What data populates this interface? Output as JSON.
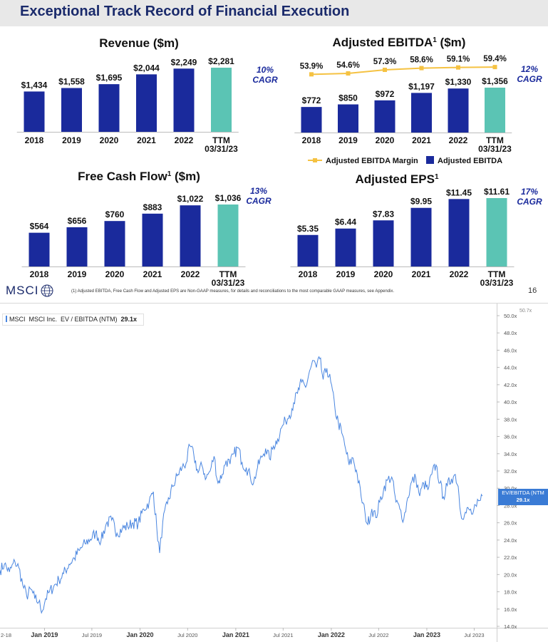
{
  "slide": {
    "title": "Exceptional Track Record of Financial Execution",
    "footnote": "(1) Adjusted EBITDA, Free Cash Flow and Adjusted EPS are Non-GAAP measures, for details and reconciliations to the most comparable GAAP measures, see Appendix.",
    "logo": "MSCI",
    "page_number": "16",
    "colors": {
      "title": "#1a2a6b",
      "bar": "#1a2a9c",
      "ttm_bar": "#5bc4b4",
      "margin_line": "#f5c242",
      "cagr": "#1a2a9c"
    }
  },
  "chart_data": [
    {
      "type": "bar",
      "title": "Revenue ($m)",
      "categories": [
        "2018",
        "2019",
        "2020",
        "2021",
        "2022",
        "TTM 03/31/23"
      ],
      "values": [
        1434,
        1558,
        1695,
        2044,
        2249,
        2281
      ],
      "labels": [
        "$1,434",
        "$1,558",
        "$1,695",
        "$2,044",
        "$2,249",
        "$2,281"
      ],
      "cagr": [
        "10%",
        "CAGR"
      ]
    },
    {
      "type": "bar",
      "title": "Adjusted EBITDA",
      "title_sup": "1",
      "title_suffix": " ($m)",
      "categories": [
        "2018",
        "2019",
        "2020",
        "2021",
        "2022",
        "TTM 03/31/23"
      ],
      "values": [
        772,
        850,
        972,
        1197,
        1330,
        1356
      ],
      "labels": [
        "$772",
        "$850",
        "$972",
        "$1,197",
        "$1,330",
        "$1,356"
      ],
      "margin": {
        "name": "Adjusted EBITDA Margin",
        "values": [
          53.9,
          54.6,
          57.3,
          58.6,
          59.1,
          59.4
        ],
        "labels": [
          "53.9%",
          "54.6%",
          "57.3%",
          "58.6%",
          "59.1%",
          "59.4%"
        ]
      },
      "legend": [
        "Adjusted EBITDA Margin",
        "Adjusted EBITDA"
      ],
      "cagr": [
        "12%",
        "CAGR"
      ]
    },
    {
      "type": "bar",
      "title": "Free Cash Flow",
      "title_sup": "1",
      "title_suffix": " ($m)",
      "categories": [
        "2018",
        "2019",
        "2020",
        "2021",
        "2022",
        "TTM 03/31/23"
      ],
      "values": [
        564,
        656,
        760,
        883,
        1022,
        1036
      ],
      "labels": [
        "$564",
        "$656",
        "$760",
        "$883",
        "$1,022",
        "$1,036"
      ],
      "cagr": [
        "13%",
        "CAGR"
      ]
    },
    {
      "type": "bar",
      "title": "Adjusted EPS",
      "title_sup": "1",
      "title_suffix": "",
      "categories": [
        "2018",
        "2019",
        "2020",
        "2021",
        "2022",
        "TTM 03/31/23"
      ],
      "values": [
        5.35,
        6.44,
        7.83,
        9.95,
        11.45,
        11.61
      ],
      "labels": [
        "$5.35",
        "$6.44",
        "$7.83",
        "$9.95",
        "$11.45",
        "$11.61"
      ],
      "cagr": [
        "17%",
        "CAGR"
      ]
    },
    {
      "type": "line",
      "legend": {
        "ticker": "MSCI",
        "company": "MSCI Inc.",
        "metric": "EV / EBITDA (NTM)",
        "last": "29.1x"
      },
      "last_tag": [
        "EV/EBITDA (NTM",
        "29.1x"
      ],
      "top_clipped_label": "50.7x",
      "y_ticks": [
        "14.0x",
        "16.0x",
        "18.0x",
        "20.0x",
        "22.0x",
        "24.0x",
        "26.0x",
        "28.0x",
        "30.0x",
        "32.0x",
        "34.0x",
        "36.0x",
        "38.0x",
        "40.0x",
        "42.0x",
        "44.0x",
        "46.0x",
        "48.0x",
        "50.0x"
      ],
      "ylim": [
        14,
        50
      ],
      "x_ticks": [
        {
          "label": "Jan 2019",
          "date": "2019-01-01",
          "bold": true
        },
        {
          "label": "Jul 2019",
          "date": "2019-07-01",
          "bold": false
        },
        {
          "label": "Jan 2020",
          "date": "2020-01-01",
          "bold": true
        },
        {
          "label": "Jul 2020",
          "date": "2020-07-01",
          "bold": false
        },
        {
          "label": "Jan 2021",
          "date": "2021-01-01",
          "bold": true
        },
        {
          "label": "Jul 2021",
          "date": "2021-07-01",
          "bold": false
        },
        {
          "label": "Jan 2022",
          "date": "2022-01-01",
          "bold": true
        },
        {
          "label": "Jul 2022",
          "date": "2022-07-01",
          "bold": false
        },
        {
          "label": "Jan 2023",
          "date": "2023-01-01",
          "bold": true
        },
        {
          "label": "Jul 2023",
          "date": "2023-07-01",
          "bold": false
        }
      ],
      "left_clipped_label": "2-18",
      "xlim": [
        "2018-07-15",
        "2023-09-25"
      ],
      "series": [
        {
          "color": "#4a86e0",
          "points": [
            [
              "2018-07-15",
              20.5
            ],
            [
              "2018-08-01",
              21.2
            ],
            [
              "2018-08-20",
              20.3
            ],
            [
              "2018-09-10",
              21.5
            ],
            [
              "2018-09-25",
              20.8
            ],
            [
              "2018-10-10",
              18.8
            ],
            [
              "2018-10-25",
              17.5
            ],
            [
              "2018-11-10",
              18.3
            ],
            [
              "2018-11-25",
              17.2
            ],
            [
              "2018-12-10",
              16.8
            ],
            [
              "2018-12-24",
              15.8
            ],
            [
              "2019-01-05",
              17.2
            ],
            [
              "2019-01-20",
              18.0
            ],
            [
              "2019-02-05",
              18.6
            ],
            [
              "2019-02-25",
              19.4
            ],
            [
              "2019-03-15",
              20.1
            ],
            [
              "2019-04-05",
              21.2
            ],
            [
              "2019-04-25",
              21.9
            ],
            [
              "2019-05-15",
              22.8
            ],
            [
              "2019-06-05",
              23.6
            ],
            [
              "2019-06-25",
              24.1
            ],
            [
              "2019-07-15",
              24.8
            ],
            [
              "2019-08-05",
              23.9
            ],
            [
              "2019-08-25",
              25.9
            ],
            [
              "2019-09-15",
              26.3
            ],
            [
              "2019-10-05",
              24.8
            ],
            [
              "2019-10-25",
              25.3
            ],
            [
              "2019-11-15",
              25.6
            ],
            [
              "2019-12-05",
              26.0
            ],
            [
              "2019-12-25",
              25.9
            ],
            [
              "2020-01-15",
              27.6
            ],
            [
              "2020-02-05",
              28.4
            ],
            [
              "2020-02-21",
              29.6
            ],
            [
              "2020-03-05",
              25.4
            ],
            [
              "2020-03-16",
              22.5
            ],
            [
              "2020-03-28",
              26.1
            ],
            [
              "2020-04-15",
              28.2
            ],
            [
              "2020-05-05",
              30.2
            ],
            [
              "2020-05-25",
              31.6
            ],
            [
              "2020-06-10",
              32.4
            ],
            [
              "2020-06-25",
              32.9
            ],
            [
              "2020-07-10",
              34.9
            ],
            [
              "2020-07-25",
              33.8
            ],
            [
              "2020-08-10",
              31.8
            ],
            [
              "2020-08-25",
              32.6
            ],
            [
              "2020-09-10",
              31.2
            ],
            [
              "2020-09-25",
              32.0
            ],
            [
              "2020-10-10",
              33.7
            ],
            [
              "2020-10-25",
              30.6
            ],
            [
              "2020-11-10",
              31.6
            ],
            [
              "2020-11-25",
              33.2
            ],
            [
              "2020-12-10",
              32.8
            ],
            [
              "2020-12-25",
              34.0
            ],
            [
              "2021-01-10",
              34.7
            ],
            [
              "2021-01-25",
              33.0
            ],
            [
              "2021-02-10",
              32.4
            ],
            [
              "2021-02-25",
              31.4
            ],
            [
              "2021-03-10",
              30.6
            ],
            [
              "2021-03-25",
              32.4
            ],
            [
              "2021-04-10",
              33.6
            ],
            [
              "2021-04-25",
              34.6
            ],
            [
              "2021-05-10",
              33.4
            ],
            [
              "2021-05-25",
              34.9
            ],
            [
              "2021-06-10",
              35.7
            ],
            [
              "2021-06-25",
              37.0
            ],
            [
              "2021-07-10",
              37.8
            ],
            [
              "2021-07-25",
              38.5
            ],
            [
              "2021-08-10",
              39.9
            ],
            [
              "2021-08-25",
              41.0
            ],
            [
              "2021-09-10",
              42.3
            ],
            [
              "2021-09-25",
              41.7
            ],
            [
              "2021-10-10",
              43.6
            ],
            [
              "2021-10-25",
              44.8
            ],
            [
              "2021-11-05",
              44.0
            ],
            [
              "2021-11-18",
              45.0
            ],
            [
              "2021-12-01",
              42.6
            ],
            [
              "2021-12-15",
              43.9
            ],
            [
              "2021-12-30",
              42.3
            ],
            [
              "2022-01-15",
              39.2
            ],
            [
              "2022-01-28",
              37.6
            ],
            [
              "2022-02-10",
              36.4
            ],
            [
              "2022-02-25",
              34.5
            ],
            [
              "2022-03-10",
              32.7
            ],
            [
              "2022-03-25",
              33.5
            ],
            [
              "2022-04-10",
              31.6
            ],
            [
              "2022-04-25",
              29.0
            ],
            [
              "2022-05-10",
              27.1
            ],
            [
              "2022-05-20",
              25.8
            ],
            [
              "2022-06-05",
              27.6
            ],
            [
              "2022-06-20",
              26.6
            ],
            [
              "2022-07-05",
              28.4
            ],
            [
              "2022-07-20",
              29.9
            ],
            [
              "2022-08-05",
              31.0
            ],
            [
              "2022-08-20",
              31.3
            ],
            [
              "2022-09-05",
              28.4
            ],
            [
              "2022-09-20",
              27.6
            ],
            [
              "2022-10-05",
              26.4
            ],
            [
              "2022-10-20",
              28.9
            ],
            [
              "2022-11-05",
              30.8
            ],
            [
              "2022-11-20",
              31.2
            ],
            [
              "2022-12-05",
              29.1
            ],
            [
              "2022-12-20",
              30.6
            ],
            [
              "2023-01-05",
              29.8
            ],
            [
              "2023-01-20",
              31.6
            ],
            [
              "2023-02-05",
              32.7
            ],
            [
              "2023-02-20",
              30.6
            ],
            [
              "2023-03-05",
              29.0
            ],
            [
              "2023-03-20",
              30.3
            ],
            [
              "2023-04-05",
              31.1
            ],
            [
              "2023-04-20",
              31.6
            ],
            [
              "2023-05-01",
              30.2
            ],
            [
              "2023-05-10",
              27.2
            ],
            [
              "2023-05-25",
              26.9
            ],
            [
              "2023-06-10",
              27.6
            ],
            [
              "2023-06-25",
              27.0
            ],
            [
              "2023-07-10",
              27.9
            ],
            [
              "2023-07-25",
              28.6
            ],
            [
              "2023-08-01",
              29.1
            ]
          ]
        }
      ]
    }
  ]
}
